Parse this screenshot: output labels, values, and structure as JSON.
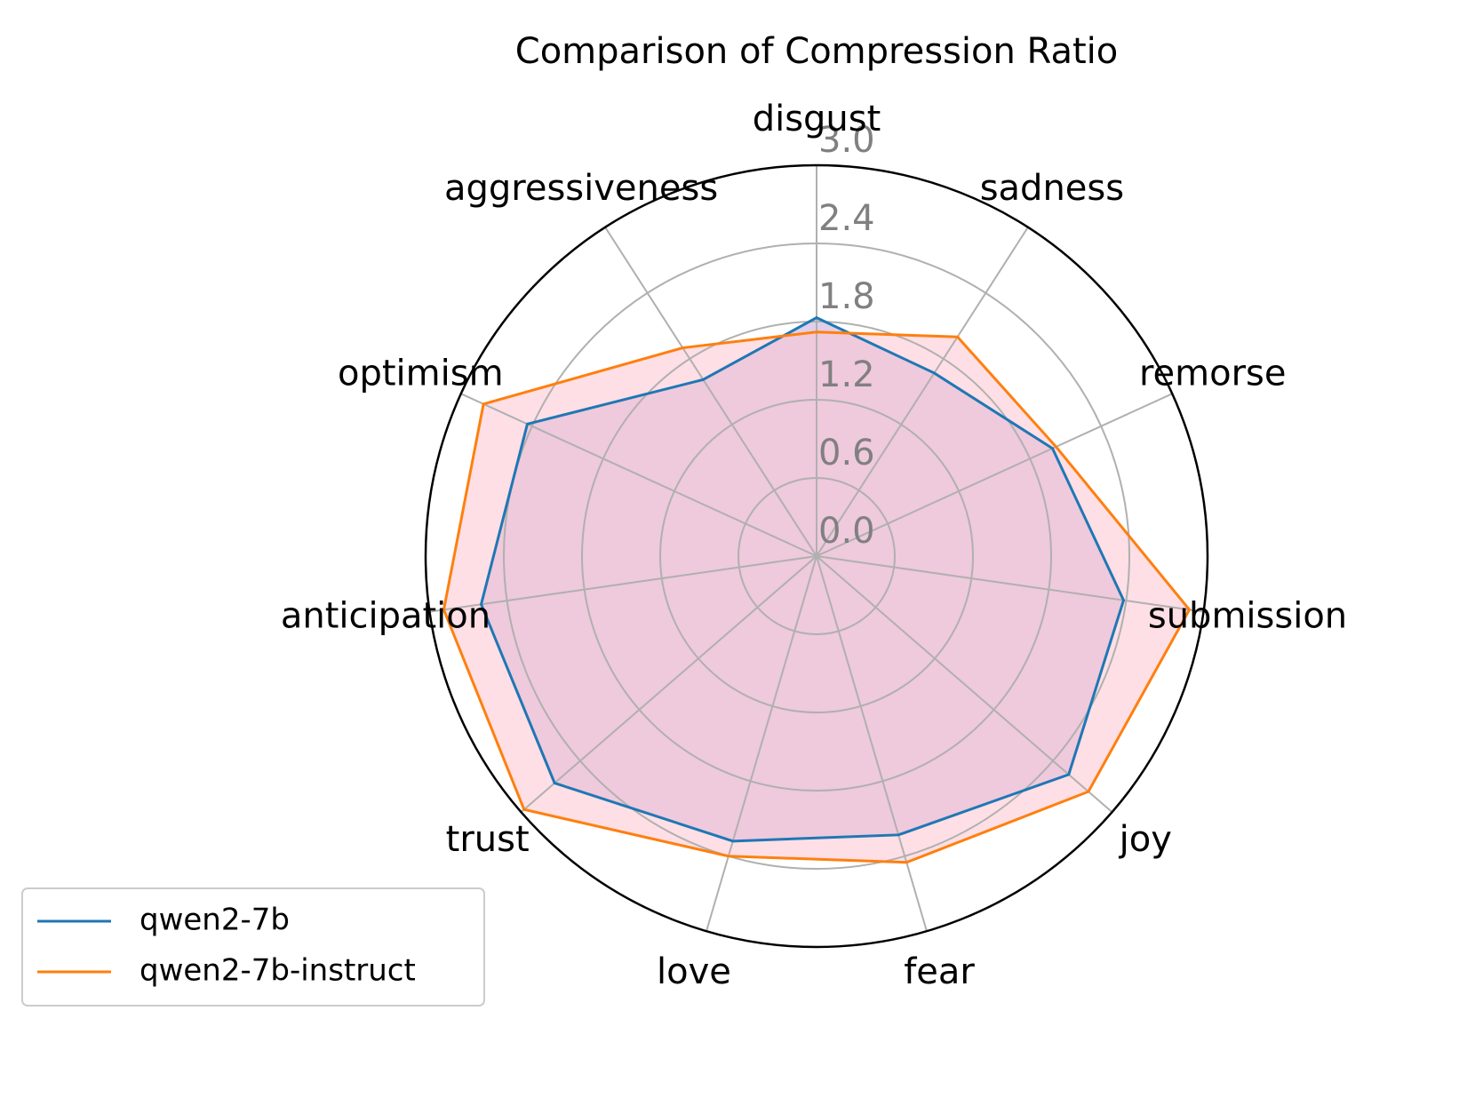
{
  "chart_data": {
    "type": "radar",
    "title": "Comparison of Compression Ratio",
    "categories": [
      "disgust",
      "sadness",
      "remorse",
      "submission",
      "joy",
      "fear",
      "love",
      "trust",
      "anticipation",
      "optimism",
      "aggressiveness"
    ],
    "series": [
      {
        "name": "qwen2-7b",
        "color": "#1f77b4",
        "fill": "#c9a6d9",
        "values": [
          1.83,
          1.67,
          1.99,
          2.38,
          2.56,
          2.23,
          2.28,
          2.66,
          2.6,
          2.44,
          1.61
        ]
      },
      {
        "name": "qwen2-7b-instruct",
        "color": "#ff7f0e",
        "fill": "#fcc4cf",
        "values": [
          1.72,
          2.0,
          2.02,
          2.89,
          2.76,
          2.45,
          2.4,
          2.97,
          2.89,
          2.81,
          1.9
        ]
      }
    ],
    "ylim": [
      0,
      3
    ],
    "yticks": [
      {
        "value": 0,
        "label": "0.0"
      },
      {
        "value": 0.6,
        "label": "0.6"
      },
      {
        "value": 1.2,
        "label": "1.2"
      },
      {
        "value": 1.8,
        "label": "1.8"
      },
      {
        "value": 2.4,
        "label": "2.4"
      },
      {
        "value": 3,
        "label": "3.0"
      }
    ],
    "grid": true,
    "legend": "lower left"
  }
}
